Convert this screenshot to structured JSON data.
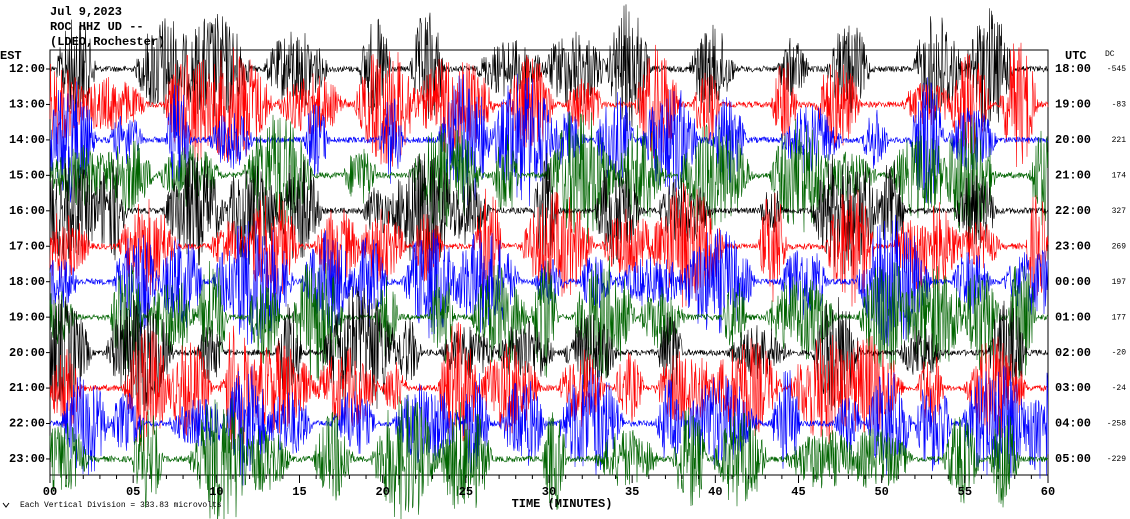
{
  "header": {
    "date": "Jul 9,2023",
    "station": "ROC HHZ UD --",
    "network": "(LDEO,Rochester)"
  },
  "left_label": "EST",
  "right_label": "UTC",
  "dc_label": "DC",
  "trace_colors": [
    "#000000",
    "#ff0000",
    "#0000ff",
    "#006400"
  ],
  "rows": [
    {
      "est": "12:00",
      "utc": "18:00",
      "dc": "-545"
    },
    {
      "est": "13:00",
      "utc": "19:00",
      "dc": "-83"
    },
    {
      "est": "14:00",
      "utc": "20:00",
      "dc": "221"
    },
    {
      "est": "15:00",
      "utc": "21:00",
      "dc": "174"
    },
    {
      "est": "16:00",
      "utc": "22:00",
      "dc": "327"
    },
    {
      "est": "17:00",
      "utc": "23:00",
      "dc": "269"
    },
    {
      "est": "18:00",
      "utc": "00:00",
      "dc": "197"
    },
    {
      "est": "19:00",
      "utc": "01:00",
      "dc": "177"
    },
    {
      "est": "20:00",
      "utc": "02:00",
      "dc": "-20"
    },
    {
      "est": "21:00",
      "utc": "03:00",
      "dc": "-24"
    },
    {
      "est": "22:00",
      "utc": "04:00",
      "dc": "-258"
    },
    {
      "est": "23:00",
      "utc": "05:00",
      "dc": "-229"
    }
  ],
  "x_axis": {
    "ticks": [
      "00",
      "05",
      "10",
      "15",
      "20",
      "25",
      "30",
      "35",
      "40",
      "45",
      "50",
      "55",
      "60"
    ],
    "label": "TIME (MINUTES)"
  },
  "footer": "Each Vertical Division =  333.83 microvolts"
}
